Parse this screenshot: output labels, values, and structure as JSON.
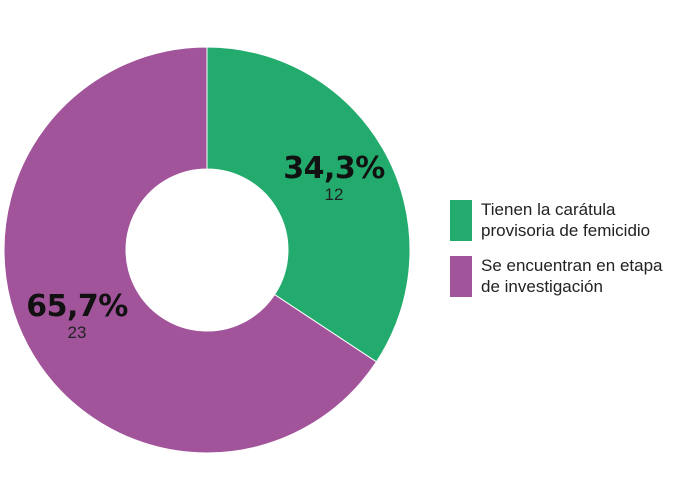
{
  "chart_data": {
    "type": "pie",
    "subtype": "donut",
    "slices": [
      {
        "label": "Tienen la carátula provisoria de femicidio",
        "legend_lines": [
          "Tienen la carátula",
          "provisoria de femicidio"
        ],
        "percent_label": "34,3%",
        "count_label": "12",
        "value": 12,
        "color": "#22ab6d"
      },
      {
        "label": "Se encuentran en etapa de investigación",
        "legend_lines": [
          "Se encuentran en etapa",
          "de investigación"
        ],
        "percent_label": "65,7%",
        "count_label": "23",
        "value": 23,
        "color": "#a2549b"
      }
    ],
    "legend_position": "right"
  }
}
